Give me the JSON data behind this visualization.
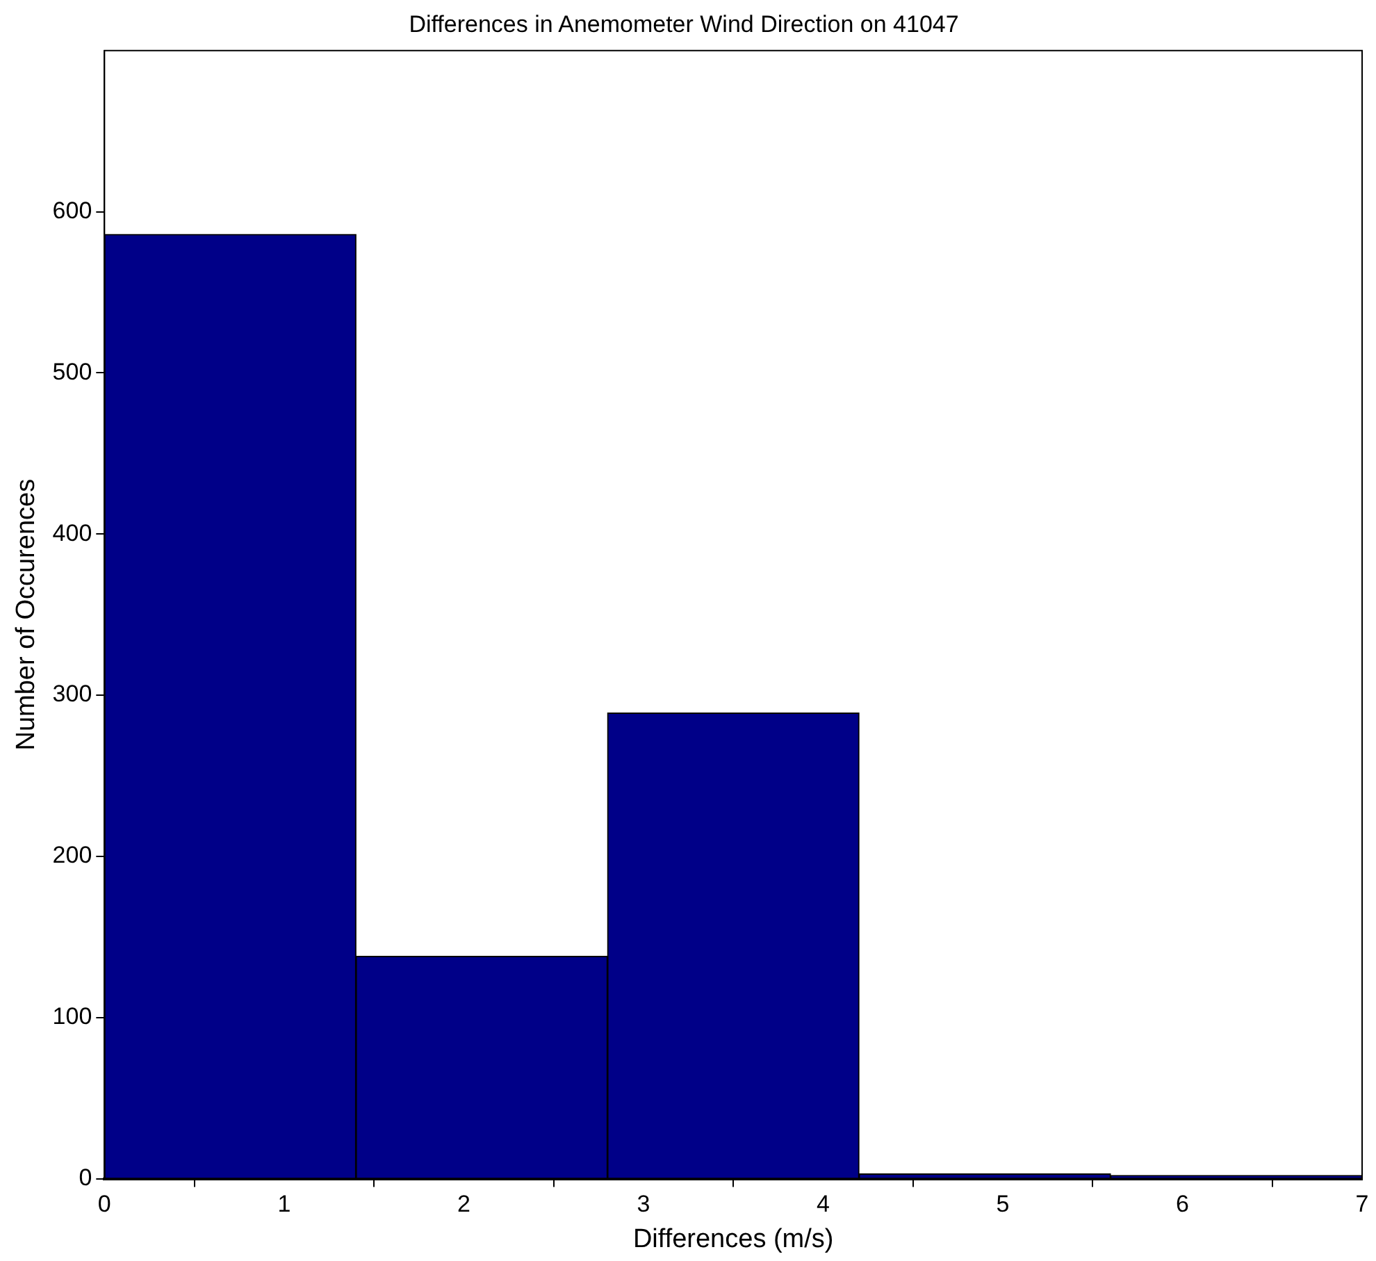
{
  "chart_data": {
    "type": "histogram",
    "title": "Differences in Anemometer Wind Direction on 41047",
    "xlabel": "Differences (m/s)",
    "ylabel": "Number of Occurences",
    "bins": [
      0,
      1.4,
      2.8,
      4.2,
      5.6,
      7
    ],
    "values": [
      586,
      138,
      289,
      3,
      2
    ],
    "color": "#000088",
    "xlim": [
      0,
      7
    ],
    "xticks": [
      0,
      1,
      2,
      3,
      4,
      5,
      6,
      7
    ],
    "ylim": [
      0,
      700
    ],
    "yticks": [
      0,
      100,
      200,
      300,
      400,
      500,
      600
    ],
    "grid": false,
    "legend": false
  }
}
